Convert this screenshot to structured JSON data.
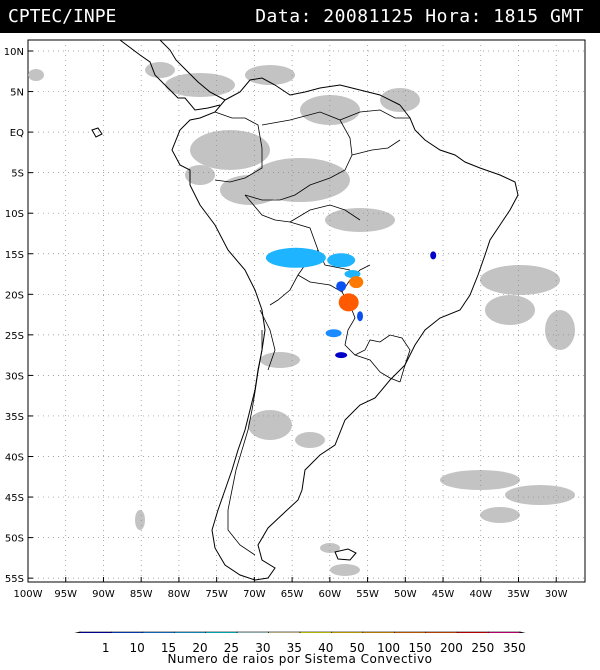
{
  "header": {
    "source": "CPTEC/INPE",
    "datetime": "Data: 20081125 Hora: 1815 GMT"
  },
  "map": {
    "lat_labels": [
      "10N",
      "5N",
      "EQ",
      "5S",
      "10S",
      "15S",
      "20S",
      "25S",
      "30S",
      "35S",
      "40S",
      "45S",
      "50S",
      "55S"
    ],
    "lon_labels": [
      "100W",
      "95W",
      "90W",
      "85W",
      "80W",
      "75W",
      "70W",
      "65W",
      "60W",
      "55W",
      "50W",
      "45W",
      "40W",
      "35W",
      "30W"
    ],
    "lon_range": [
      -100,
      -28
    ],
    "lat_range": [
      -56,
      13
    ],
    "grid": "dotted"
  },
  "colorbar": {
    "labels": [
      "1",
      "10",
      "15",
      "20",
      "25",
      "30",
      "35",
      "40",
      "50",
      "100",
      "150",
      "200",
      "250",
      "350"
    ],
    "colors": [
      "#0000c8",
      "#0a50f0",
      "#1a8cff",
      "#1eb4ff",
      "#00e6f0",
      "#c8f0f0",
      "#fff0b4",
      "#ffff00",
      "#ffd200",
      "#ffaa00",
      "#ff7800",
      "#ff5a00",
      "#ff0000",
      "#ff0096"
    ],
    "title": "Numero de raios por Sistema Convectivo"
  },
  "systems": [
    {
      "lon": -64.5,
      "lat": -15.5,
      "value": 20
    },
    {
      "lon": -58.5,
      "lat": -15.8,
      "value": 20
    },
    {
      "lon": -57.0,
      "lat": -17.5,
      "value": 20
    },
    {
      "lon": -56.5,
      "lat": -18.5,
      "value": 150
    },
    {
      "lon": -58.5,
      "lat": -19.0,
      "value": 10
    },
    {
      "lon": -57.5,
      "lat": -21.0,
      "value": 200
    },
    {
      "lon": -56.0,
      "lat": -22.7,
      "value": 10
    },
    {
      "lon": -59.5,
      "lat": -24.8,
      "value": 15
    },
    {
      "lon": -58.5,
      "lat": -27.5,
      "value": 1
    },
    {
      "lon": -46.3,
      "lat": -15.2,
      "value": 1
    }
  ]
}
